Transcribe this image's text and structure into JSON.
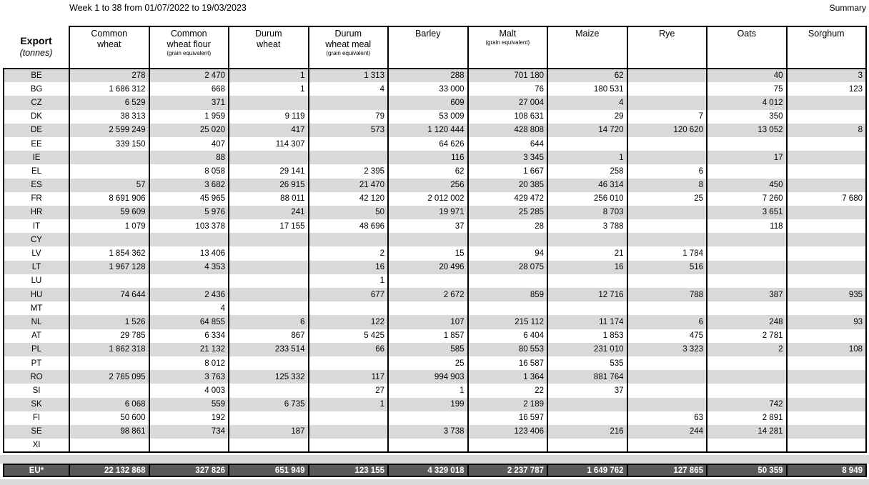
{
  "page": {
    "title": "Week 1 to 38 from 01/07/2022 to 19/03/2023",
    "summary_label": "Summary"
  },
  "table": {
    "corner": {
      "title": "Export",
      "unit": "(tonnes)"
    },
    "columns": [
      {
        "line1": "Common",
        "line2": "wheat",
        "sub": ""
      },
      {
        "line1": "Common",
        "line2": "wheat flour",
        "sub": "(grain equivalent)"
      },
      {
        "line1": "Durum",
        "line2": "wheat",
        "sub": ""
      },
      {
        "line1": "Durum",
        "line2": "wheat meal",
        "sub": "(grain equivalent)"
      },
      {
        "line1": "Barley",
        "line2": "",
        "sub": ""
      },
      {
        "line1": "Malt",
        "line2": "",
        "sub": "(grain equivalent)"
      },
      {
        "line1": "Maize",
        "line2": "",
        "sub": ""
      },
      {
        "line1": "Rye",
        "line2": "",
        "sub": ""
      },
      {
        "line1": "Oats",
        "line2": "",
        "sub": ""
      },
      {
        "line1": "Sorghum",
        "line2": "",
        "sub": ""
      }
    ],
    "rows": [
      {
        "code": "BE",
        "values": [
          "278",
          "2 470",
          "1",
          "1 313",
          "288",
          "701 180",
          "62",
          "",
          "40",
          "3"
        ]
      },
      {
        "code": "BG",
        "values": [
          "1 686 312",
          "668",
          "1",
          "4",
          "33 000",
          "76",
          "180 531",
          "",
          "75",
          "123"
        ]
      },
      {
        "code": "CZ",
        "values": [
          "6 529",
          "371",
          "",
          "",
          "609",
          "27 004",
          "4",
          "",
          "4 012",
          ""
        ]
      },
      {
        "code": "DK",
        "values": [
          "38 313",
          "1 959",
          "9 119",
          "79",
          "53 009",
          "108 631",
          "29",
          "7",
          "350",
          ""
        ]
      },
      {
        "code": "DE",
        "values": [
          "2 599 249",
          "25 020",
          "417",
          "573",
          "1 120 444",
          "428 808",
          "14 720",
          "120 620",
          "13 052",
          "8"
        ]
      },
      {
        "code": "EE",
        "values": [
          "339 150",
          "407",
          "114 307",
          "",
          "64 626",
          "644",
          "",
          "",
          "",
          ""
        ]
      },
      {
        "code": "IE",
        "values": [
          "",
          "88",
          "",
          "",
          "116",
          "3 345",
          "1",
          "",
          "17",
          ""
        ]
      },
      {
        "code": "EL",
        "values": [
          "",
          "8 058",
          "29 141",
          "2 395",
          "62",
          "1 667",
          "258",
          "6",
          "",
          ""
        ]
      },
      {
        "code": "ES",
        "values": [
          "57",
          "3 682",
          "26 915",
          "21 470",
          "256",
          "20 385",
          "46 314",
          "8",
          "450",
          ""
        ]
      },
      {
        "code": "FR",
        "values": [
          "8 691 906",
          "45 965",
          "88 011",
          "42 120",
          "2 012 002",
          "429 472",
          "256 010",
          "25",
          "7 260",
          "7 680"
        ]
      },
      {
        "code": "HR",
        "values": [
          "59 609",
          "5 976",
          "241",
          "50",
          "19 971",
          "25 285",
          "8 703",
          "",
          "3 651",
          ""
        ]
      },
      {
        "code": "IT",
        "values": [
          "1 079",
          "103 378",
          "17 155",
          "48 696",
          "37",
          "28",
          "3 788",
          "",
          "118",
          ""
        ]
      },
      {
        "code": "CY",
        "values": [
          "",
          "",
          "",
          "",
          "",
          "",
          "",
          "",
          "",
          ""
        ]
      },
      {
        "code": "LV",
        "values": [
          "1 854 362",
          "13 406",
          "",
          "2",
          "15",
          "94",
          "21",
          "1 784",
          "",
          ""
        ]
      },
      {
        "code": "LT",
        "values": [
          "1 967 128",
          "4 353",
          "",
          "16",
          "20 496",
          "28 075",
          "16",
          "516",
          "",
          ""
        ]
      },
      {
        "code": "LU",
        "values": [
          "",
          "",
          "",
          "1",
          "",
          "",
          "",
          "",
          "",
          ""
        ]
      },
      {
        "code": "HU",
        "values": [
          "74 644",
          "2 436",
          "",
          "677",
          "2 672",
          "859",
          "12 716",
          "788",
          "387",
          "935"
        ]
      },
      {
        "code": "MT",
        "values": [
          "",
          "4",
          "",
          "",
          "",
          "",
          "",
          "",
          "",
          ""
        ]
      },
      {
        "code": "NL",
        "values": [
          "1 526",
          "64 855",
          "6",
          "122",
          "107",
          "215 112",
          "11 174",
          "6",
          "248",
          "93"
        ]
      },
      {
        "code": "AT",
        "values": [
          "29 785",
          "6 334",
          "867",
          "5 425",
          "1 857",
          "6 404",
          "1 853",
          "475",
          "2 781",
          ""
        ]
      },
      {
        "code": "PL",
        "values": [
          "1 862 318",
          "21 132",
          "233 514",
          "66",
          "585",
          "80 553",
          "231 010",
          "3 323",
          "2",
          "108"
        ]
      },
      {
        "code": "PT",
        "values": [
          "",
          "8 012",
          "",
          "",
          "25",
          "16 587",
          "535",
          "",
          "",
          ""
        ]
      },
      {
        "code": "RO",
        "values": [
          "2 765 095",
          "3 763",
          "125 332",
          "117",
          "994 903",
          "1 364",
          "881 764",
          "",
          "",
          ""
        ]
      },
      {
        "code": "SI",
        "values": [
          "",
          "4 003",
          "",
          "27",
          "1",
          "22",
          "37",
          "",
          "",
          ""
        ]
      },
      {
        "code": "SK",
        "values": [
          "6 068",
          "559",
          "6 735",
          "1",
          "199",
          "2 189",
          "",
          "",
          "742",
          ""
        ]
      },
      {
        "code": "FI",
        "values": [
          "50 600",
          "192",
          "",
          "",
          "",
          "16 597",
          "",
          "63",
          "2 891",
          ""
        ]
      },
      {
        "code": "SE",
        "values": [
          "98 861",
          "734",
          "187",
          "",
          "3 738",
          "123 406",
          "216",
          "244",
          "14 281",
          ""
        ]
      },
      {
        "code": "XI",
        "values": [
          "",
          "",
          "",
          "",
          "",
          "",
          "",
          "",
          "",
          ""
        ]
      }
    ],
    "total": {
      "code": "EU*",
      "values": [
        "22 132 868",
        "327 826",
        "651 949",
        "123 155",
        "4 329 018",
        "2 237 787",
        "1 649 762",
        "127 865",
        "50 359",
        "8 949"
      ]
    }
  },
  "colors": {
    "stripe_row": "#d9d9d9",
    "separator_band": "#d9d9d9",
    "total_row_background": "#595959",
    "total_row_text": "#ffffff",
    "border": "#000000"
  }
}
